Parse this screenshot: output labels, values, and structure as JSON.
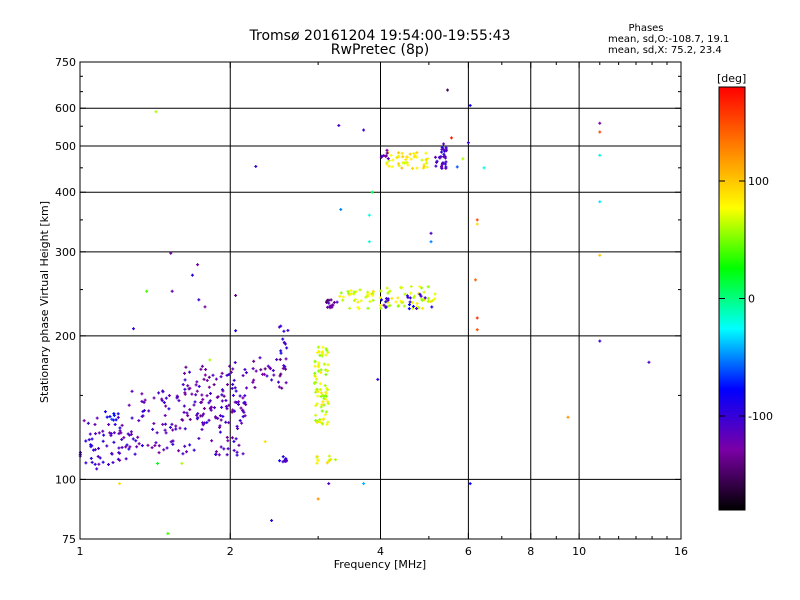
{
  "header": {
    "title_line1": "Tromsø 20161204 19:54:00-19:55:43",
    "title_line2": "RwPretec (8p)",
    "stats_heading": "Phases",
    "stats_line1": "mean, sd,O:-108.7, 19.1",
    "stats_line2": "mean, sd,X:  75.2, 23.4"
  },
  "chart_data": {
    "type": "scatter",
    "xlabel": "Frequency [MHz]",
    "ylabel": "Stationary phase Virtual Height [km]",
    "x_scale": "log",
    "y_scale": "log",
    "xlim": [
      1,
      16
    ],
    "ylim": [
      75,
      750
    ],
    "x_ticks": [
      1,
      2,
      4,
      6,
      8,
      10,
      16
    ],
    "x_tick_labels": [
      "1",
      "2",
      "4",
      "6",
      "8",
      "10",
      "16"
    ],
    "x_gridlines": [
      2,
      4,
      6,
      8,
      10
    ],
    "y_ticks": [
      75,
      100,
      200,
      300,
      400,
      500,
      600,
      750
    ],
    "y_tick_labels": [
      "75",
      "100",
      "200",
      "300",
      "400",
      "500",
      "600",
      "750"
    ],
    "y_gridlines": [
      100,
      200,
      300,
      400,
      500,
      600
    ],
    "grid": true,
    "color_encoding": "phase",
    "colorbar": {
      "label": "[deg]",
      "range": [
        -180,
        180
      ],
      "ticks": [
        100,
        0,
        -100
      ],
      "tick_labels": [
        "100",
        "0",
        "-100"
      ],
      "stops": [
        "#000000",
        "#7a00a6",
        "#0000ff",
        "#00ffff",
        "#00ff00",
        "#ffff00",
        "#ff8000",
        "#ff0000"
      ]
    },
    "series": [
      {
        "x_range": [
          1.0,
          1.25
        ],
        "y_range": [
          105,
          135
        ],
        "n": 60,
        "phase": -110
      },
      {
        "x_range": [
          1.1,
          1.2
        ],
        "y_range": [
          130,
          142
        ],
        "n": 10,
        "phase": -80
      },
      {
        "x_range": [
          1.25,
          2.15
        ],
        "y_range": [
          112,
          155
        ],
        "n": 150,
        "phase": -115
      },
      {
        "x_range": [
          1.6,
          2.2
        ],
        "y_range": [
          133,
          178
        ],
        "n": 75,
        "phase": -120
      },
      {
        "x_range": [
          2.2,
          2.6
        ],
        "y_range": [
          155,
          180
        ],
        "n": 30,
        "phase": -125
      },
      {
        "x_range": [
          2.5,
          2.62
        ],
        "y_range": [
          172,
          212
        ],
        "n": 12,
        "phase": -105
      },
      {
        "x_range": [
          2.5,
          2.6
        ],
        "y_range": [
          108,
          112
        ],
        "n": 8,
        "phase": -95
      },
      {
        "x_range": [
          2.95,
          3.15
        ],
        "y_range": [
          130,
          192
        ],
        "n": 80,
        "phase": 70
      },
      {
        "x_range": [
          2.95,
          3.2
        ],
        "y_range": [
          108,
          112
        ],
        "n": 10,
        "phase": 75
      },
      {
        "x_range": [
          3.1,
          3.28
        ],
        "y_range": [
          228,
          238
        ],
        "n": 15,
        "phase": -130
      },
      {
        "x_range": [
          3.3,
          4.0
        ],
        "y_range": [
          228,
          250
        ],
        "n": 35,
        "phase": 70
      },
      {
        "x_range": [
          4.0,
          5.15
        ],
        "y_range": [
          228,
          255
        ],
        "n": 50,
        "phase": 72
      },
      {
        "x_range": [
          4.0,
          4.15
        ],
        "y_range": [
          228,
          240
        ],
        "n": 8,
        "phase": -100
      },
      {
        "x_range": [
          4.5,
          5.2
        ],
        "y_range": [
          228,
          245
        ],
        "n": 12,
        "phase": -95
      },
      {
        "x_range": [
          4.1,
          5.0
        ],
        "y_range": [
          448,
          485
        ],
        "n": 45,
        "phase": 85
      },
      {
        "x_range": [
          5.15,
          5.45
        ],
        "y_range": [
          448,
          500
        ],
        "n": 30,
        "phase": -110
      },
      {
        "x_range": [
          4.0,
          4.15
        ],
        "y_range": [
          465,
          490
        ],
        "n": 8,
        "phase": -120
      }
    ],
    "points": [
      {
        "x": 1.28,
        "y": 207,
        "phase": -100
      },
      {
        "x": 1.36,
        "y": 248,
        "phase": 40
      },
      {
        "x": 1.42,
        "y": 590,
        "phase": 60
      },
      {
        "x": 1.52,
        "y": 298,
        "phase": -140
      },
      {
        "x": 1.53,
        "y": 248,
        "phase": -120
      },
      {
        "x": 1.68,
        "y": 268,
        "phase": -90
      },
      {
        "x": 1.72,
        "y": 282,
        "phase": -130
      },
      {
        "x": 1.73,
        "y": 238,
        "phase": -100
      },
      {
        "x": 1.78,
        "y": 230,
        "phase": -130
      },
      {
        "x": 2.05,
        "y": 243,
        "phase": -140
      },
      {
        "x": 2.05,
        "y": 205,
        "phase": -90
      },
      {
        "x": 2.25,
        "y": 453,
        "phase": -100
      },
      {
        "x": 2.42,
        "y": 82,
        "phase": -100
      },
      {
        "x": 2.35,
        "y": 120,
        "phase": 90
      },
      {
        "x": 1.2,
        "y": 98,
        "phase": 90
      },
      {
        "x": 1.5,
        "y": 77,
        "phase": 40
      },
      {
        "x": 1.43,
        "y": 108,
        "phase": 20
      },
      {
        "x": 1.6,
        "y": 108,
        "phase": 60
      },
      {
        "x": 1.82,
        "y": 178,
        "phase": 60
      },
      {
        "x": 3.0,
        "y": 91,
        "phase": 120
      },
      {
        "x": 3.15,
        "y": 98,
        "phase": -110
      },
      {
        "x": 3.25,
        "y": 110,
        "phase": 60
      },
      {
        "x": 3.3,
        "y": 552,
        "phase": -110
      },
      {
        "x": 3.33,
        "y": 368,
        "phase": -50
      },
      {
        "x": 3.7,
        "y": 540,
        "phase": -100
      },
      {
        "x": 3.8,
        "y": 358,
        "phase": -20
      },
      {
        "x": 3.8,
        "y": 315,
        "phase": -20
      },
      {
        "x": 3.85,
        "y": 400,
        "phase": 10
      },
      {
        "x": 3.95,
        "y": 162,
        "phase": -100
      },
      {
        "x": 3.7,
        "y": 98,
        "phase": -40
      },
      {
        "x": 5.45,
        "y": 655,
        "phase": -150
      },
      {
        "x": 5.55,
        "y": 520,
        "phase": 170
      },
      {
        "x": 5.7,
        "y": 452,
        "phase": -60
      },
      {
        "x": 5.35,
        "y": 505,
        "phase": -120
      },
      {
        "x": 5.05,
        "y": 328,
        "phase": -110
      },
      {
        "x": 5.05,
        "y": 315,
        "phase": -50
      },
      {
        "x": 5.85,
        "y": 470,
        "phase": 60
      },
      {
        "x": 6.0,
        "y": 508,
        "phase": -100
      },
      {
        "x": 6.05,
        "y": 608,
        "phase": -80
      },
      {
        "x": 6.25,
        "y": 350,
        "phase": 150
      },
      {
        "x": 6.25,
        "y": 343,
        "phase": 90
      },
      {
        "x": 6.2,
        "y": 262,
        "phase": 140
      },
      {
        "x": 6.25,
        "y": 218,
        "phase": 160
      },
      {
        "x": 6.25,
        "y": 206,
        "phase": 150
      },
      {
        "x": 6.05,
        "y": 98,
        "phase": -80
      },
      {
        "x": 6.45,
        "y": 450,
        "phase": -20
      },
      {
        "x": 9.5,
        "y": 135,
        "phase": 120
      },
      {
        "x": 11.0,
        "y": 558,
        "phase": -130
      },
      {
        "x": 11.0,
        "y": 535,
        "phase": 150
      },
      {
        "x": 11.0,
        "y": 478,
        "phase": -20
      },
      {
        "x": 11.0,
        "y": 382,
        "phase": -30
      },
      {
        "x": 11.0,
        "y": 295,
        "phase": 100
      },
      {
        "x": 11.0,
        "y": 195,
        "phase": -100
      },
      {
        "x": 13.8,
        "y": 176,
        "phase": -110
      }
    ]
  }
}
